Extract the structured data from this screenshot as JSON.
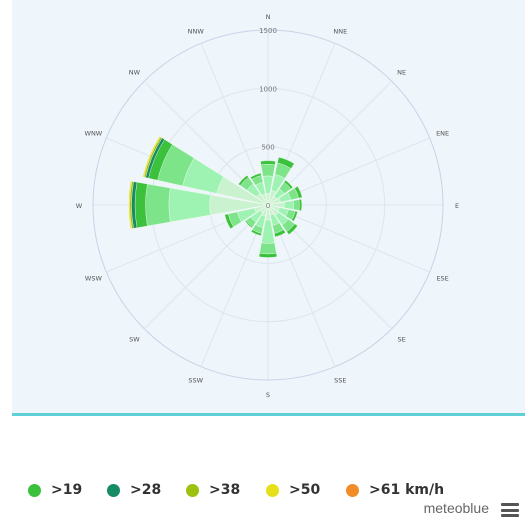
{
  "chart_data": {
    "type": "polar-stacked-bar",
    "directions": [
      "N",
      "NNE",
      "NE",
      "ENE",
      "E",
      "ESE",
      "SE",
      "SSE",
      "S",
      "SSW",
      "SW",
      "WSW",
      "W",
      "WNW",
      "NW",
      "NNW"
    ],
    "radial_ticks": [
      "0",
      "500",
      "1000",
      "1500"
    ],
    "rmax": 1500,
    "series": [
      {
        "name": "",
        "color": "#cbf2cf",
        "values": [
          100,
          130,
          90,
          110,
          140,
          100,
          110,
          90,
          130,
          100,
          80,
          120,
          500,
          450,
          120,
          100
        ]
      },
      {
        "name": "",
        "color": "#9ff3b2",
        "values": [
          150,
          140,
          80,
          90,
          80,
          80,
          100,
          90,
          200,
          100,
          100,
          150,
          350,
          300,
          100,
          100
        ]
      },
      {
        "name": "",
        "color": "#7ee48a",
        "values": [
          100,
          100,
          70,
          70,
          50,
          60,
          70,
          70,
          90,
          50,
          50,
          80,
          200,
          220,
          70,
          60
        ]
      },
      {
        "name": ">19",
        "color": "#3cc13c",
        "values": [
          30,
          50,
          20,
          30,
          20,
          20,
          30,
          30,
          30,
          20,
          10,
          30,
          90,
          80,
          20,
          20
        ]
      },
      {
        "name": ">28",
        "color": "#178c62",
        "values": [
          0,
          0,
          0,
          0,
          0,
          0,
          0,
          0,
          0,
          0,
          0,
          0,
          30,
          25,
          0,
          0
        ]
      },
      {
        "name": ">38",
        "color": "#9cc10f",
        "values": [
          0,
          0,
          0,
          0,
          0,
          0,
          0,
          0,
          0,
          0,
          0,
          0,
          15,
          15,
          0,
          0
        ]
      },
      {
        "name": ">50",
        "color": "#e6e01b",
        "values": [
          0,
          0,
          0,
          0,
          0,
          0,
          0,
          0,
          0,
          0,
          0,
          0,
          10,
          10,
          0,
          0
        ]
      },
      {
        "name": ">61 km/h",
        "color": "#f28c28",
        "values": [
          0,
          0,
          0,
          0,
          0,
          0,
          0,
          0,
          0,
          0,
          0,
          0,
          0,
          0,
          0,
          0
        ]
      }
    ],
    "grid": true
  },
  "legend": [
    {
      "label": ">19",
      "color": "#3cc13c"
    },
    {
      "label": ">28",
      "color": "#178c62"
    },
    {
      "label": ">38",
      "color": "#9cc10f"
    },
    {
      "label": ">50",
      "color": "#e6e01b"
    },
    {
      "label": ">61 km/h",
      "color": "#f28c28"
    }
  ],
  "credit": "meteoblue",
  "icons": {
    "menu": "hamburger-menu-icon"
  }
}
